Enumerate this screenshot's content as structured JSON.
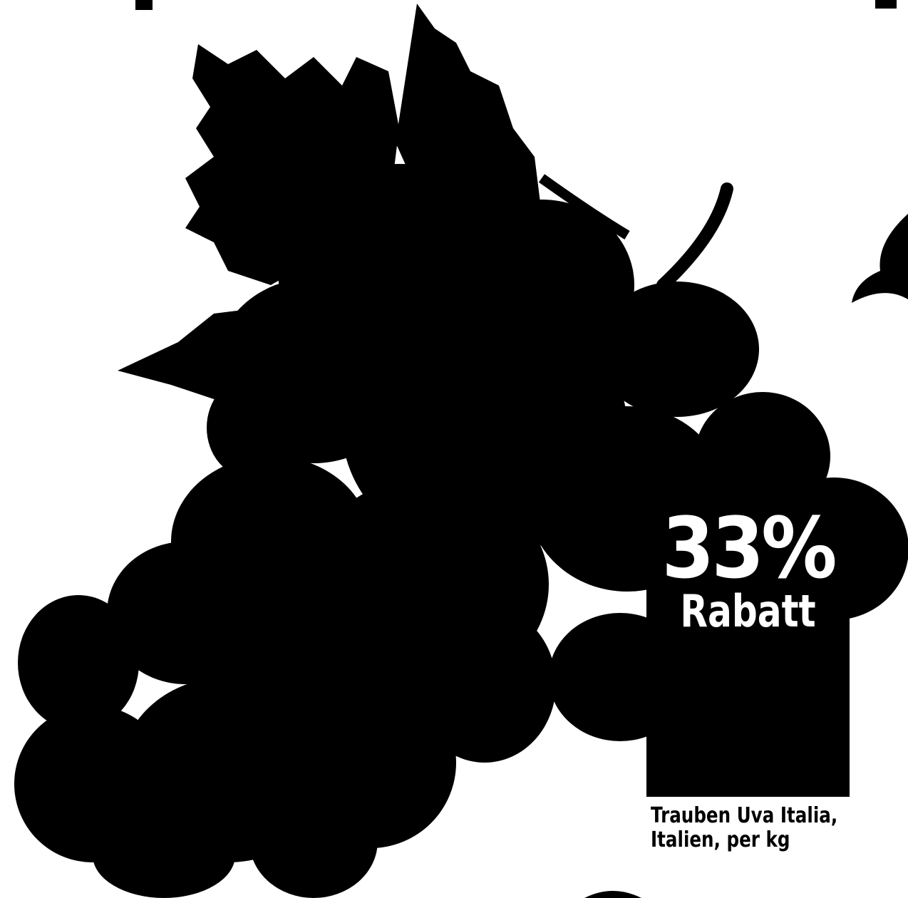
{
  "offer": {
    "discount": "33%",
    "discount_label": "Rabatt",
    "product": [
      "Trauben Uva Italia,",
      "Italien, per kg"
    ]
  }
}
